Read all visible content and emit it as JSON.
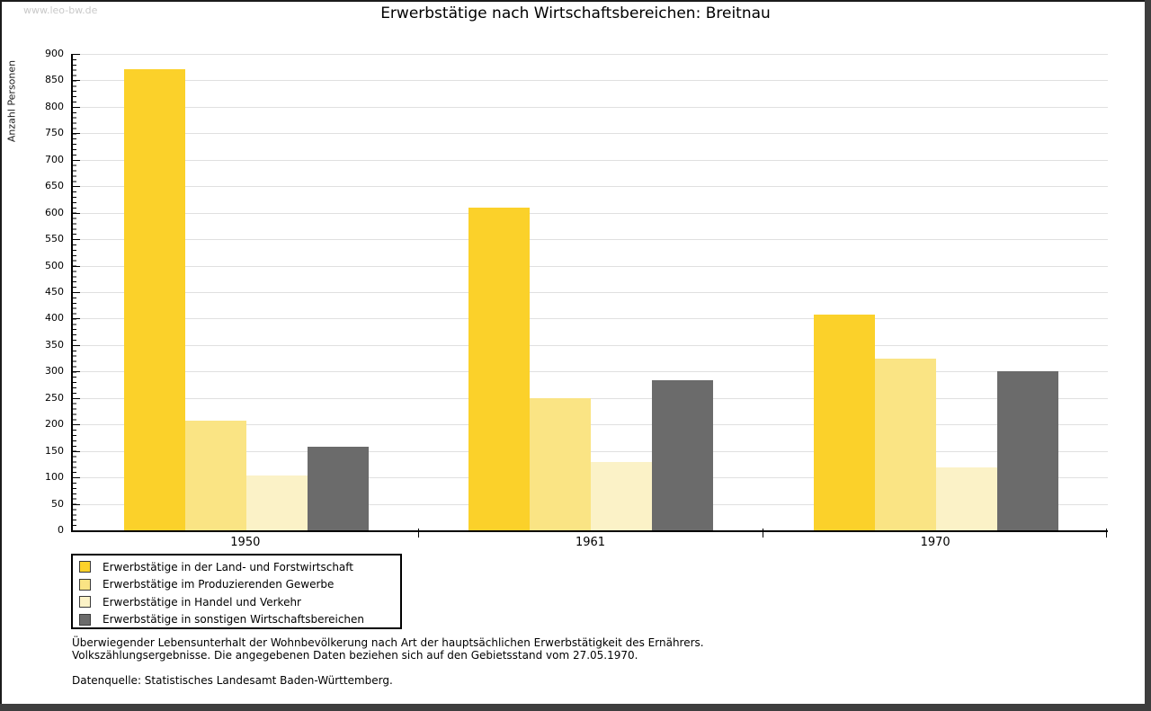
{
  "watermark": "www.leo-bw.de",
  "title": "Erwerbstätige nach Wirtschaftsbereichen: Breitnau",
  "chart_data": {
    "type": "bar",
    "title": "Erwerbstätige nach Wirtschaftsbereichen: Breitnau",
    "ylabel": "Anzahl Personen",
    "ylim": [
      0,
      900
    ],
    "ytick_step": 50,
    "yticks": [
      0,
      50,
      100,
      150,
      200,
      250,
      300,
      350,
      400,
      450,
      500,
      550,
      600,
      650,
      700,
      750,
      800,
      850,
      900
    ],
    "grid": true,
    "legend_position": "bottom-left",
    "categories": [
      "1950",
      "1961",
      "1970"
    ],
    "series": [
      {
        "name": "Erwerbstätige in der Land- und Forstwirtschaft",
        "color": "#FBD12A",
        "values": [
          872,
          610,
          408
        ]
      },
      {
        "name": "Erwerbstätige im Produzierenden Gewerbe",
        "color": "#FAE484",
        "values": [
          207,
          249,
          324
        ]
      },
      {
        "name": "Erwerbstätige in Handel und Verkehr",
        "color": "#FBF2C7",
        "values": [
          104,
          129,
          119
        ]
      },
      {
        "name": "Erwerbstätige in sonstigen Wirtschaftsbereichen",
        "color": "#6B6B6B",
        "values": [
          158,
          284,
          301
        ]
      }
    ]
  },
  "footer": {
    "line1": "Überwiegender Lebensunterhalt der Wohnbevölkerung nach Art der hauptsächlichen Erwerbstätigkeit des Ernährers.",
    "line2": "Volkszählungsergebnisse. Die angegebenen Daten beziehen sich auf den Gebietsstand vom 27.05.1970.",
    "source": "Datenquelle: Statistisches Landesamt Baden-Württemberg."
  }
}
